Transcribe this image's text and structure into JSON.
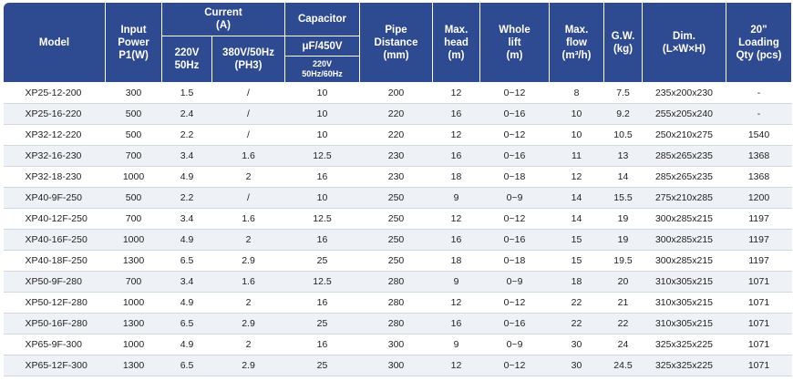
{
  "header": {
    "model": "Model",
    "input_power": [
      "Input",
      "Power",
      "P1(W)"
    ],
    "current": [
      "Current",
      "(A)"
    ],
    "current_220v": [
      "220V",
      "50Hz"
    ],
    "current_380v": [
      "380V/50Hz",
      "(PH3)"
    ],
    "capacitor": "Capacitor",
    "capacitor_uf": "μF/450V",
    "capacitor_freq": [
      "220V",
      "50Hz/60Hz"
    ],
    "pipe_distance": [
      "Pipe",
      "Distance",
      "(mm)"
    ],
    "max_head": [
      "Max.",
      "head",
      "(m)"
    ],
    "whole_lift": [
      "Whole",
      "lift",
      "(m)"
    ],
    "max_flow": [
      "Max.",
      "flow",
      "(m³/h)"
    ],
    "gw": [
      "G.W.",
      "(kg)"
    ],
    "dim": [
      "Dim.",
      "(L×W×H)"
    ],
    "loading": [
      "20\"",
      "Loading",
      "Qty (pcs)"
    ]
  },
  "rows": [
    [
      "XP25-12-200",
      "300",
      "1.5",
      "/",
      "10",
      "200",
      "12",
      "0~12",
      "8",
      "7.5",
      "235x200x230",
      "-"
    ],
    [
      "XP25-16-220",
      "500",
      "2.4",
      "/",
      "10",
      "220",
      "16",
      "0~16",
      "10",
      "9.2",
      "255x205x240",
      "-"
    ],
    [
      "XP32-12-220",
      "500",
      "2.2",
      "/",
      "10",
      "220",
      "12",
      "0~12",
      "10",
      "10.5",
      "250x210x275",
      "1540"
    ],
    [
      "XP32-16-230",
      "700",
      "3.4",
      "1.6",
      "12.5",
      "230",
      "16",
      "0~16",
      "11",
      "13",
      "285x265x235",
      "1368"
    ],
    [
      "XP32-18-230",
      "1000",
      "4.9",
      "2",
      "16",
      "230",
      "18",
      "0~18",
      "12",
      "14",
      "285x265x235",
      "1368"
    ],
    [
      "XP40-9F-250",
      "500",
      "2.2",
      "/",
      "10",
      "250",
      "9",
      "0~9",
      "14",
      "15.5",
      "275x210x285",
      "1200"
    ],
    [
      "XP40-12F-250",
      "700",
      "3.4",
      "1.6",
      "12.5",
      "250",
      "12",
      "0~12",
      "14",
      "19",
      "300x285x215",
      "1197"
    ],
    [
      "XP40-16F-250",
      "1000",
      "4.9",
      "2",
      "16",
      "250",
      "16",
      "0~16",
      "15",
      "19",
      "300x285x215",
      "1197"
    ],
    [
      "XP40-18F-250",
      "1300",
      "6.5",
      "2.9",
      "25",
      "250",
      "18",
      "0~18",
      "15",
      "19.5",
      "300x285x215",
      "1197"
    ],
    [
      "XP50-9F-280",
      "700",
      "3.4",
      "1.6",
      "12.5",
      "280",
      "9",
      "0~9",
      "18",
      "20",
      "310x305x215",
      "1071"
    ],
    [
      "XP50-12F-280",
      "1000",
      "4.9",
      "2",
      "16",
      "280",
      "12",
      "0~12",
      "22",
      "21",
      "310x305x215",
      "1071"
    ],
    [
      "XP50-16F-280",
      "1300",
      "6.5",
      "2.9",
      "25",
      "280",
      "16",
      "0~16",
      "22",
      "22",
      "310x305x215",
      "1071"
    ],
    [
      "XP65-9F-300",
      "1000",
      "4.9",
      "2",
      "16",
      "300",
      "9",
      "0~9",
      "30",
      "24",
      "325x325x225",
      "1071"
    ],
    [
      "XP65-12F-300",
      "1300",
      "6.5",
      "2.9",
      "25",
      "300",
      "12",
      "0~12",
      "30",
      "24.5",
      "325x325x225",
      "1071"
    ]
  ],
  "colors": {
    "header_bg": "#2e4a90",
    "row_alt": "#eef1f6",
    "rule": "#cfd6e4"
  }
}
